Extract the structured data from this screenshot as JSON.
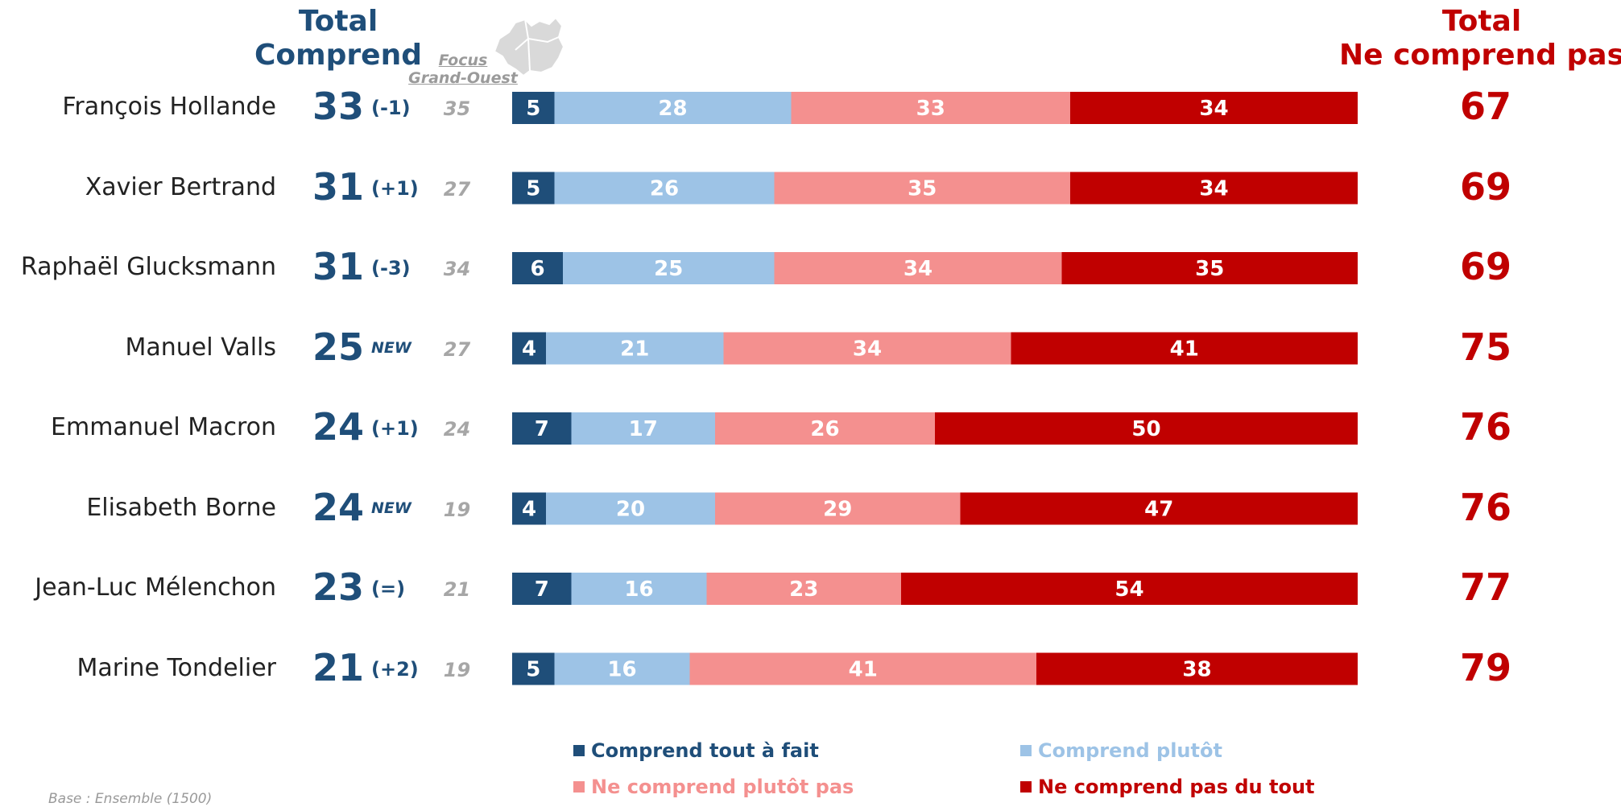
{
  "headers": {
    "total_comprend": [
      "Total",
      "Comprend"
    ],
    "focus": [
      "Focus",
      "Grand-Ouest"
    ],
    "total_ncp": [
      "Total",
      "Ne comprend pas"
    ]
  },
  "colors": {
    "tout_a_fait": "#1F4E79",
    "plutot": "#9DC3E6",
    "plutot_pas": "#F4908F",
    "pas_du_tout": "#C00000"
  },
  "rows": [
    {
      "name": "François Hollande",
      "total": "33",
      "evolution": "(-1)",
      "focus": "35",
      "total_ncp": "67"
    },
    {
      "name": "Xavier Bertrand",
      "total": "31",
      "evolution": "(+1)",
      "focus": "27",
      "total_ncp": "69"
    },
    {
      "name": "Raphaël Glucksmann",
      "total": "31",
      "evolution": "(-3)",
      "focus": "34",
      "total_ncp": "69"
    },
    {
      "name": "Manuel Valls",
      "total": "25",
      "evolution": "NEW",
      "focus": "27",
      "total_ncp": "75"
    },
    {
      "name": "Emmanuel Macron",
      "total": "24",
      "evolution": "(+1)",
      "focus": "24",
      "total_ncp": "76"
    },
    {
      "name": "Elisabeth Borne",
      "total": "24",
      "evolution": "NEW",
      "focus": "19",
      "total_ncp": "76"
    },
    {
      "name": "Jean-Luc Mélenchon",
      "total": "23",
      "evolution": "(=)",
      "focus": "21",
      "total_ncp": "77"
    },
    {
      "name": "Marine Tondelier",
      "total": "21",
      "evolution": "(+2)",
      "focus": "19",
      "total_ncp": "79"
    }
  ],
  "legend": [
    "Comprend tout à fait",
    "Comprend plutôt",
    "Ne comprend plutôt pas",
    "Ne comprend pas du tout"
  ],
  "base_note": "Base : Ensemble (1500)",
  "chart_data": {
    "type": "bar",
    "orientation": "horizontal",
    "stacked": true,
    "xlim": [
      0,
      100
    ],
    "categories": [
      "François Hollande",
      "Xavier Bertrand",
      "Raphaël Glucksmann",
      "Manuel Valls",
      "Emmanuel Macron",
      "Elisabeth Borne",
      "Jean-Luc Mélenchon",
      "Marine Tondelier"
    ],
    "series": [
      {
        "name": "Comprend tout à fait",
        "values": [
          5,
          5,
          6,
          4,
          7,
          4,
          7,
          5
        ]
      },
      {
        "name": "Comprend plutôt",
        "values": [
          28,
          26,
          25,
          21,
          17,
          20,
          16,
          16
        ]
      },
      {
        "name": "Ne comprend plutôt pas",
        "values": [
          33,
          35,
          34,
          34,
          26,
          29,
          23,
          41
        ]
      },
      {
        "name": "Ne comprend pas du tout",
        "values": [
          34,
          34,
          35,
          41,
          50,
          47,
          54,
          38
        ]
      }
    ],
    "legend_position": "bottom"
  }
}
